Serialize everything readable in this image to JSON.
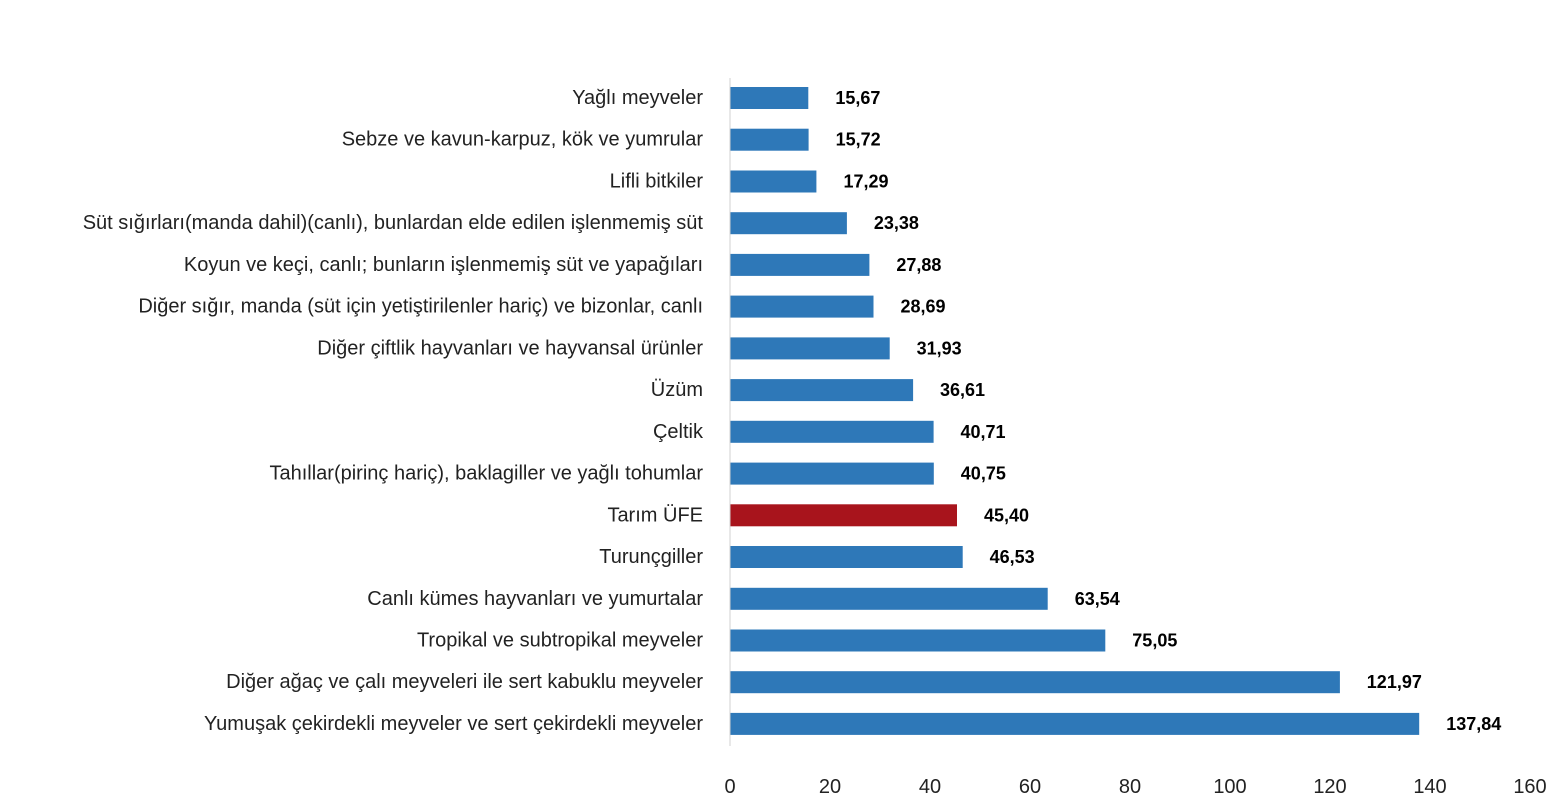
{
  "chart_data": {
    "type": "bar",
    "orientation": "horizontal",
    "title": "",
    "xlabel": "",
    "ylabel": "",
    "xlim": [
      0,
      160
    ],
    "x_ticks": [
      0,
      20,
      40,
      60,
      80,
      100,
      120,
      140,
      160
    ],
    "grid": false,
    "legend": "none",
    "colors": {
      "default": "#2e78b8",
      "highlight": "#a8141c"
    },
    "categories": [
      "Yağlı meyveler",
      "Sebze ve kavun-karpuz, kök ve yumrular",
      "Lifli bitkiler",
      "Süt sığırları(manda dahil)(canlı), bunlardan elde edilen işlenmemiş süt",
      "Koyun ve keçi, canlı; bunların işlenmemiş süt ve yapağıları",
      "Diğer sığır, manda (süt için yetiştirilenler hariç) ve bizonlar, canlı",
      "Diğer çiftlik hayvanları ve hayvansal ürünler",
      "Üzüm",
      "Çeltik",
      "Tahıllar(pirinç hariç), baklagiller ve yağlı tohumlar",
      "Tarım ÜFE",
      "Turunçgiller",
      "Canlı kümes hayvanları ve yumurtalar",
      "Tropikal ve subtropikal meyveler",
      "Diğer ağaç ve çalı meyveleri ile sert kabuklu meyveler",
      "Yumuşak çekirdekli meyveler ve sert çekirdekli meyveler"
    ],
    "values": [
      15.67,
      15.72,
      17.29,
      23.38,
      27.88,
      28.69,
      31.93,
      36.61,
      40.71,
      40.75,
      45.4,
      46.53,
      63.54,
      75.05,
      121.97,
      137.84
    ],
    "value_labels": [
      "15,67",
      "15,72",
      "17,29",
      "23,38",
      "27,88",
      "28,69",
      "31,93",
      "36,61",
      "40,71",
      "40,75",
      "45,40",
      "46,53",
      "63,54",
      "75,05",
      "121,97",
      "137,84"
    ],
    "highlight": "Tarım ÜFE"
  }
}
